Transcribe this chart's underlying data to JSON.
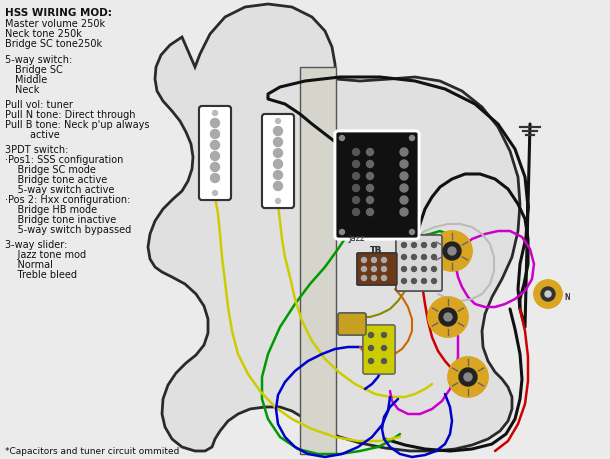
{
  "bg_color": "#ebebeb",
  "text_lines": [
    [
      "HSS WIRING MOD:",
      5,
      8,
      7.5,
      "bold"
    ],
    [
      "Master volume 250k",
      5,
      19,
      7.0,
      "normal"
    ],
    [
      "Neck tone 250k",
      5,
      29,
      7.0,
      "normal"
    ],
    [
      "Bridge SC tone250k",
      5,
      39,
      7.0,
      "normal"
    ],
    [
      "5-way switch:",
      5,
      55,
      7.0,
      "normal"
    ],
    [
      "Bridge SC",
      15,
      65,
      7.0,
      "normal"
    ],
    [
      "Middle",
      15,
      75,
      7.0,
      "normal"
    ],
    [
      "Neck",
      15,
      85,
      7.0,
      "normal"
    ],
    [
      "Pull vol: tuner",
      5,
      100,
      7.0,
      "normal"
    ],
    [
      "Pull N tone: Direct through",
      5,
      110,
      7.0,
      "normal"
    ],
    [
      "Pull B tone: Neck p'up always",
      5,
      120,
      7.0,
      "normal"
    ],
    [
      "        active",
      5,
      130,
      7.0,
      "normal"
    ],
    [
      "3PDT switch:",
      5,
      145,
      7.0,
      "normal"
    ],
    [
      "·Pos1: SSS configuration",
      5,
      155,
      7.0,
      "normal"
    ],
    [
      "    Bridge SC mode",
      5,
      165,
      7.0,
      "normal"
    ],
    [
      "    Bridge tone active",
      5,
      175,
      7.0,
      "normal"
    ],
    [
      "    5-way switch active",
      5,
      185,
      7.0,
      "normal"
    ],
    [
      "·Pos 2: Hxx configuration:",
      5,
      195,
      7.0,
      "normal"
    ],
    [
      "    Bridge HB mode",
      5,
      205,
      7.0,
      "normal"
    ],
    [
      "    Bridge tone inactive",
      5,
      215,
      7.0,
      "normal"
    ],
    [
      "    5-way switch bypassed",
      5,
      225,
      7.0,
      "normal"
    ],
    [
      "3-way slider:",
      5,
      240,
      7.0,
      "normal"
    ],
    [
      "    Jazz tone mod",
      5,
      250,
      7.0,
      "normal"
    ],
    [
      "    Normal",
      5,
      260,
      7.0,
      "normal"
    ],
    [
      "    Treble bleed",
      5,
      270,
      7.0,
      "normal"
    ],
    [
      "*Capacitors and tuner circuit ommited",
      5,
      447,
      6.5,
      "normal"
    ]
  ]
}
